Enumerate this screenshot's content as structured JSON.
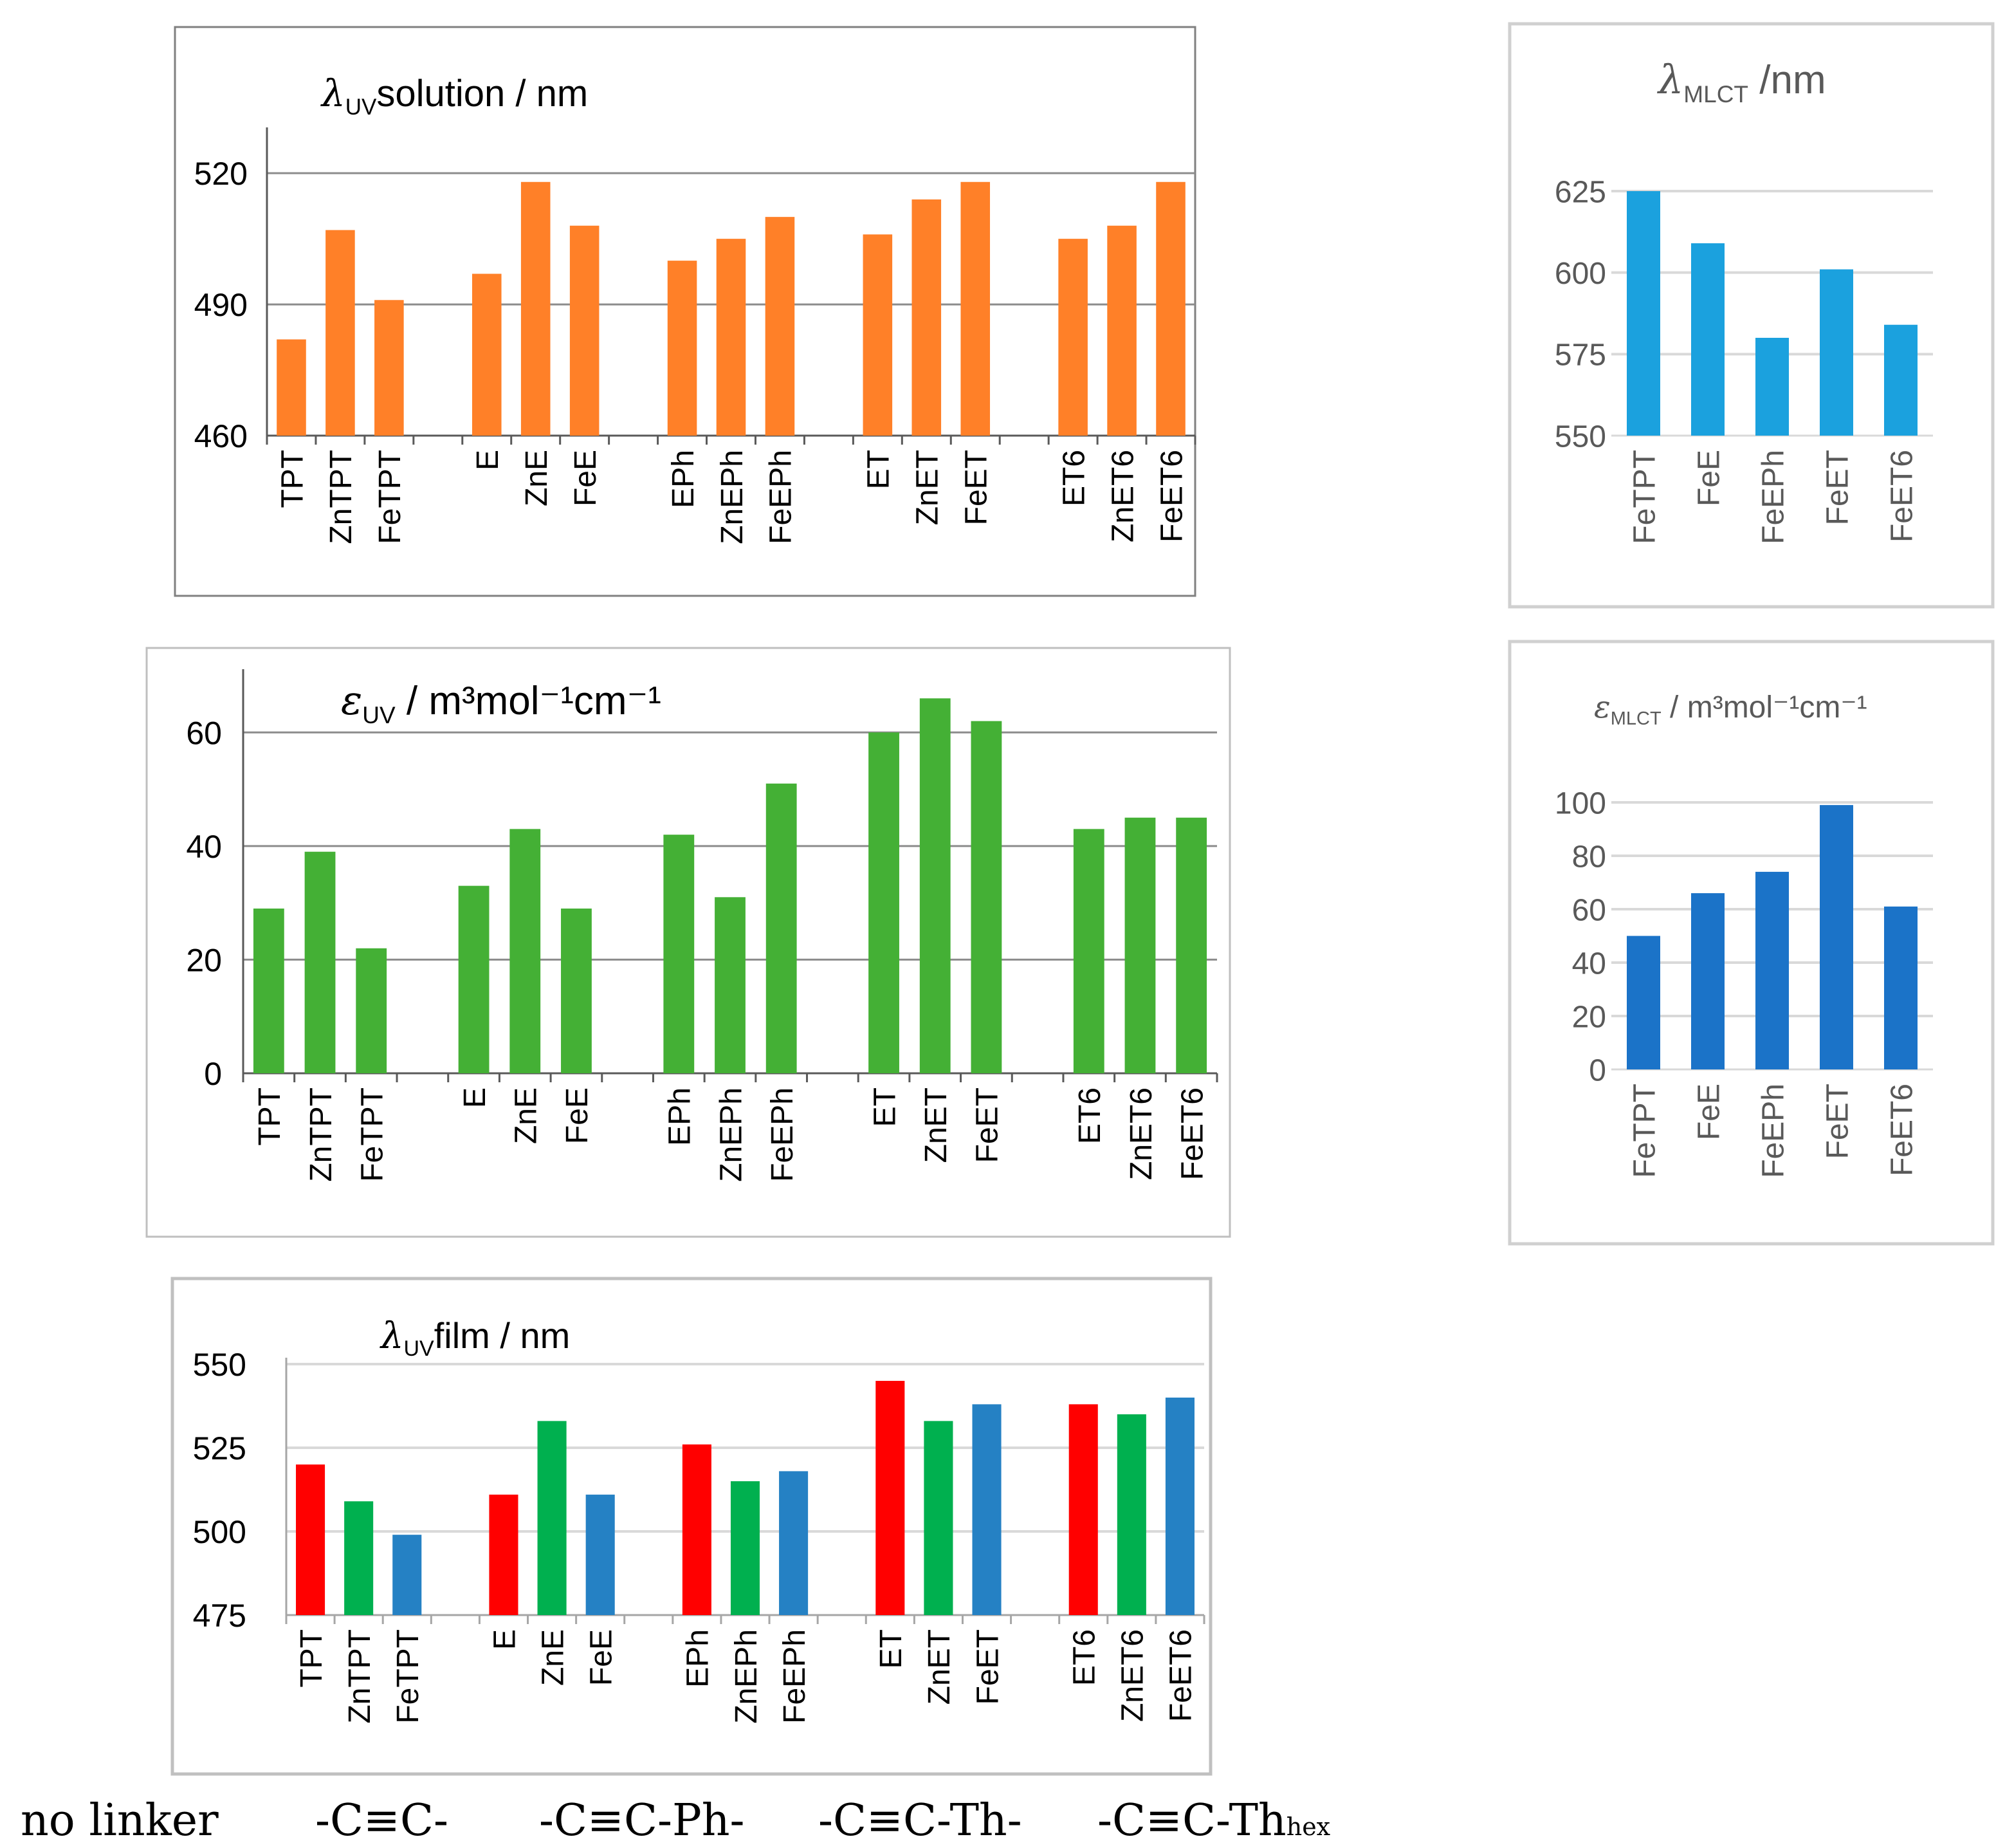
{
  "colors": {
    "orange": "#FF8028",
    "green": "#44B035",
    "light_blue": "#1BA1DE",
    "dark_blue": "#1B73C8",
    "red": "#FF0000",
    "film_green": "#00B04F",
    "film_blue": "#2581C4"
  },
  "chart_data": [
    {
      "id": "uv_solution",
      "type": "bar",
      "title_symbol": "λ",
      "title_sub": "UV",
      "title_rest": "solution / nm",
      "categories": [
        "TPT",
        "ZnTPT",
        "FeTPT",
        "E",
        "ZnE",
        "FeE",
        "EPh",
        "ZnEPh",
        "FeEPh",
        "ET",
        "ZnET",
        "FeET",
        "ET6",
        "ZnET6",
        "FeET6"
      ],
      "values": [
        482,
        507,
        491,
        497,
        518,
        508,
        500,
        505,
        510,
        506,
        514,
        518,
        505,
        508,
        518
      ],
      "yticks": [
        460,
        490,
        520
      ],
      "ylim": [
        460,
        529
      ],
      "color": "orange"
    },
    {
      "id": "epsilon_uv",
      "type": "bar",
      "title_symbol": "ε",
      "title_sub": "UV",
      "title_rest": " / m³mol⁻¹cm⁻¹",
      "categories": [
        "TPT",
        "ZnTPT",
        "FeTPT",
        "E",
        "ZnE",
        "FeE",
        "EPh",
        "ZnEPh",
        "FeEPh",
        "ET",
        "ZnET",
        "FeET",
        "ET6",
        "ZnET6",
        "FeET6"
      ],
      "values": [
        29,
        39,
        22,
        33,
        43,
        29,
        42,
        31,
        51,
        60,
        66,
        62,
        43,
        45,
        45
      ],
      "yticks": [
        0,
        20,
        40,
        60
      ],
      "ylim": [
        0,
        70
      ],
      "color": "green"
    },
    {
      "id": "uv_film",
      "type": "bar",
      "title_symbol": "λ",
      "title_sub": "UV",
      "title_rest": "film / nm",
      "categories": [
        "TPT",
        "ZnTPT",
        "FeTPT",
        "E",
        "ZnE",
        "FeE",
        "EPh",
        "ZnEPh",
        "FeEPh",
        "ET",
        "ZnET",
        "FeET",
        "ET6",
        "ZnET6",
        "FeET6"
      ],
      "values": [
        520,
        509,
        499,
        511,
        533,
        511,
        526,
        515,
        518,
        545,
        533,
        538,
        538,
        535,
        540
      ],
      "yticks": [
        475,
        500,
        525,
        550
      ],
      "ylim": [
        475,
        550
      ],
      "bar_colors": [
        "red",
        "film_green",
        "film_blue",
        "red",
        "film_green",
        "film_blue",
        "red",
        "film_green",
        "film_blue",
        "red",
        "film_green",
        "film_blue",
        "red",
        "film_green",
        "film_blue"
      ]
    },
    {
      "id": "mlct_lambda",
      "type": "bar",
      "title_symbol": "λ",
      "title_sub": "MLCT",
      "title_rest": " /nm",
      "categories": [
        "FeTPT",
        "FeE",
        "FeEPh",
        "FeET",
        "FeET6"
      ],
      "values": [
        625,
        609,
        580,
        601,
        584
      ],
      "yticks": [
        550,
        575,
        600,
        625
      ],
      "ylim": [
        550,
        625
      ],
      "color": "light_blue"
    },
    {
      "id": "mlct_epsilon",
      "type": "bar",
      "title_symbol": "ε",
      "title_sub": "MLCT",
      "title_rest": " / m³mol⁻¹cm⁻¹",
      "categories": [
        "FeTPT",
        "FeE",
        "FeEPh",
        "FeET",
        "FeET6"
      ],
      "values": [
        50,
        66,
        74,
        99,
        61
      ],
      "yticks": [
        0,
        20,
        40,
        60,
        80,
        100
      ],
      "ylim": [
        0,
        100
      ],
      "color": "dark_blue"
    }
  ],
  "linker_labels": {
    "no_linker": "no linker",
    "cc": "-C≡C-",
    "cc_ph": "-C≡C-Ph-",
    "cc_th": "-C≡C-Th-",
    "cc_thhex_main": "-C≡C-Th",
    "cc_thhex_sub": "hex"
  }
}
